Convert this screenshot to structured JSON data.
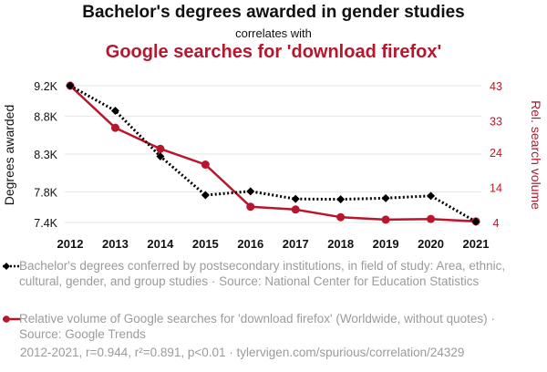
{
  "header": {
    "title": "Bachelor's degrees awarded in gender studies",
    "subtitle": "correlates with",
    "title2": "Google searches for 'download firefox'"
  },
  "colors": {
    "series1": "#000000",
    "series2": "#b8162c",
    "grid": "#e6e6e6",
    "muted": "#9b9b9b"
  },
  "chart_data": {
    "type": "line",
    "x": [
      2012,
      2013,
      2014,
      2015,
      2016,
      2017,
      2018,
      2019,
      2020,
      2021
    ],
    "x_tick_labels": [
      "2012",
      "2013",
      "2014",
      "2015",
      "2016",
      "2017",
      "2018",
      "2019",
      "2020",
      "2021"
    ],
    "left_axis": {
      "label": "Degrees awarded",
      "ticks": [
        7400,
        7800,
        8300,
        8800,
        9200
      ],
      "tick_labels": [
        "7.4K",
        "7.8K",
        "8.3K",
        "8.8K",
        "9.2K"
      ],
      "range": [
        7400,
        9200
      ]
    },
    "right_axis": {
      "label": "Rel. search volume",
      "ticks": [
        4,
        14,
        24,
        33,
        43
      ],
      "tick_labels": [
        "4",
        "14",
        "24",
        "33",
        "43"
      ],
      "range": [
        4,
        43
      ]
    },
    "series": [
      {
        "name": "Bachelor's degrees conferred by postsecondary institutions, in field of study: Area, ethnic, cultural, gender, and group studies · Source: National Center for Education Statistics",
        "axis": "left",
        "style": "dotted",
        "marker": "diamond",
        "values": [
          9200,
          8870,
          8270,
          7760,
          7810,
          7710,
          7705,
          7720,
          7750,
          7410
        ]
      },
      {
        "name": "Relative volume of Google searches for 'download firefox' (Worldwide, without quotes) · Source: Google Trends",
        "axis": "right",
        "style": "solid",
        "marker": "circle",
        "values": [
          43,
          31,
          25,
          20.5,
          8.5,
          7.7,
          5.5,
          4.8,
          5,
          4.3
        ]
      }
    ],
    "grid": true
  },
  "footer": {
    "stats": "2012-2021, r=0.944, r²=0.891, p<0.01 · tylervigen.com/spurious/correlation/24329"
  }
}
